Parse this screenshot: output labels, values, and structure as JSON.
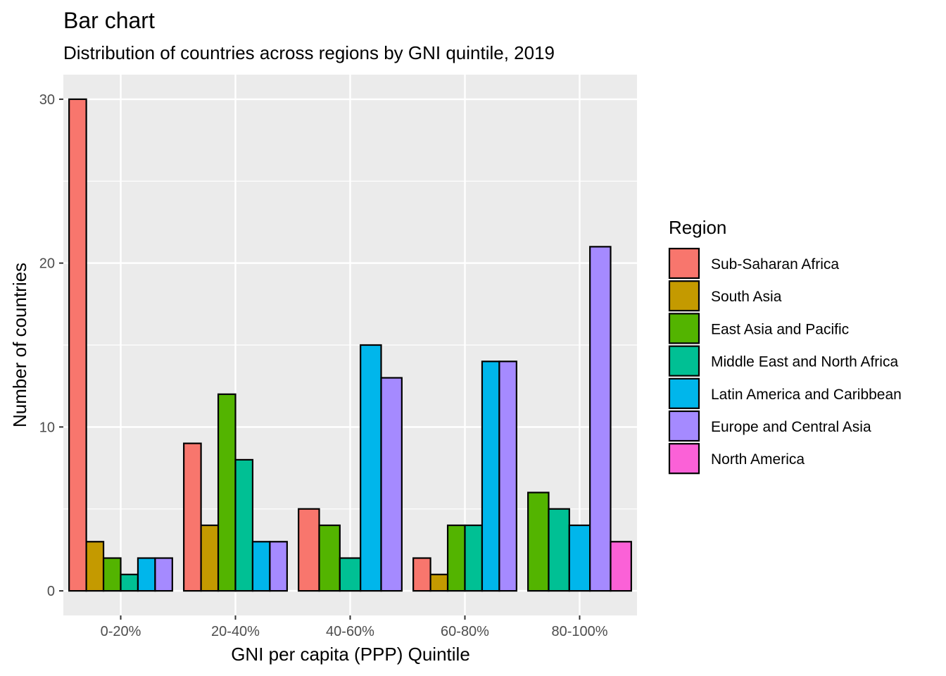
{
  "chart_data": {
    "type": "bar",
    "title": "Bar chart",
    "subtitle": "Distribution of countries across regions by GNI quintile, 2019",
    "xlabel": "GNI per capita (PPP) Quintile",
    "ylabel": "Number of countries",
    "ylim": [
      -1.5,
      31.5
    ],
    "yticks": [
      0,
      10,
      20,
      30
    ],
    "grid": true,
    "legend_position": "right",
    "legend_title": "Region",
    "categories": [
      "0-20%",
      "20-40%",
      "40-60%",
      "60-80%",
      "80-100%"
    ],
    "series": [
      {
        "name": "Sub-Saharan Africa",
        "color": "#F8766D",
        "values": [
          30,
          9,
          5,
          2,
          null
        ]
      },
      {
        "name": "South Asia",
        "color": "#C49A00",
        "values": [
          3,
          4,
          null,
          1,
          null
        ]
      },
      {
        "name": "East Asia and Pacific",
        "color": "#53B400",
        "values": [
          2,
          12,
          4,
          4,
          6
        ]
      },
      {
        "name": "Middle East and North Africa",
        "color": "#00C094",
        "values": [
          1,
          8,
          2,
          4,
          5
        ]
      },
      {
        "name": "Latin America and Caribbean",
        "color": "#00B6EB",
        "values": [
          2,
          3,
          15,
          14,
          4
        ]
      },
      {
        "name": "Europe and Central Asia",
        "color": "#A58AFF",
        "values": [
          2,
          3,
          13,
          14,
          21
        ]
      },
      {
        "name": "North America",
        "color": "#FB61D7",
        "values": [
          null,
          null,
          null,
          null,
          3
        ]
      }
    ]
  }
}
